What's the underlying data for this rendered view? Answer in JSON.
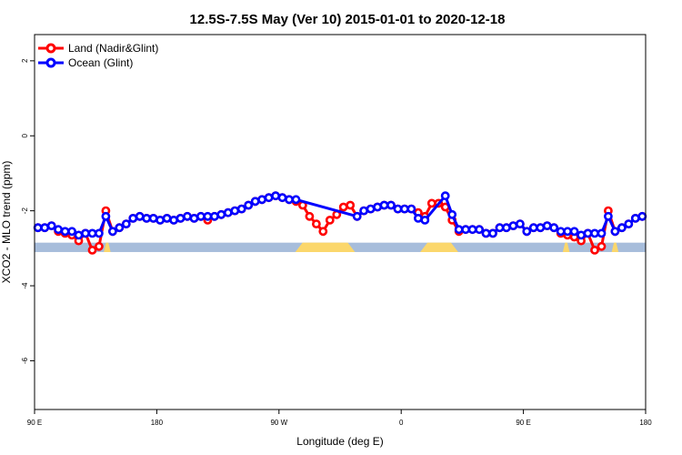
{
  "chart_data": {
    "type": "line",
    "title": "12.5S-7.5S May (Ver 10)   2015-01-01 to 2020-12-18",
    "xlabel": "Longitude (deg E)",
    "ylabel": "XCO2 - MLO trend (ppm)",
    "x_range": [
      90,
      540
    ],
    "ylim": [
      -7.3,
      2.7
    ],
    "x_ticks": [
      {
        "value": 90,
        "label": "90 E"
      },
      {
        "value": 180,
        "label": "180"
      },
      {
        "value": 270,
        "label": "90 W"
      },
      {
        "value": 360,
        "label": "0"
      },
      {
        "value": 450,
        "label": "90 E"
      },
      {
        "value": 540,
        "label": "180"
      }
    ],
    "y_ticks": [
      {
        "value": 2,
        "label": "2"
      },
      {
        "value": 0,
        "label": "0"
      },
      {
        "value": -2,
        "label": "-2"
      },
      {
        "value": -4,
        "label": "-4"
      },
      {
        "value": -6,
        "label": "-6"
      }
    ],
    "legend": {
      "position": "top-left"
    },
    "surface_band": {
      "y_range": [
        -2.85,
        -3.1
      ],
      "ocean_color": "#a7bddb",
      "land_color": "#fbd76c",
      "land_segments": [
        [
          282,
          326
        ],
        [
          374,
          402
        ],
        [
          479,
          484
        ],
        [
          515,
          520
        ],
        [
          141,
          146
        ]
      ]
    },
    "series": [
      {
        "name": "Land (Nadir&Glint)",
        "color": "#ff0000",
        "points": [
          [
            92.5,
            -2.45
          ],
          [
            97.5,
            -2.45
          ],
          [
            102.5,
            -2.4
          ],
          [
            107.5,
            -2.55
          ],
          [
            112.5,
            -2.6
          ],
          [
            117.5,
            -2.65
          ],
          [
            122.5,
            -2.8
          ],
          [
            127.5,
            -2.6
          ],
          [
            132.5,
            -3.05
          ],
          [
            137.5,
            -2.95
          ],
          [
            142.5,
            -2.0
          ],
          [
            147.5,
            -2.55
          ],
          [
            152.5,
            -2.45
          ],
          [
            157.5,
            -2.35
          ],
          [
            162.5,
            -2.2
          ],
          [
            167.5,
            -2.15
          ],
          [
            172.5,
            -2.2
          ],
          [
            177.5,
            -2.2
          ],
          [
            182.5,
            -2.25
          ],
          [
            187.5,
            -2.2
          ],
          [
            192.5,
            -2.25
          ],
          [
            197.5,
            -2.2
          ],
          [
            202.5,
            -2.15
          ],
          [
            207.5,
            -2.2
          ],
          [
            212.5,
            -2.15
          ],
          [
            217.5,
            -2.25
          ],
          [
            222.5,
            -2.15
          ],
          [
            227.5,
            -2.1
          ],
          [
            232.5,
            -2.05
          ],
          [
            237.5,
            -2.0
          ],
          [
            242.5,
            -1.95
          ],
          [
            247.5,
            -1.85
          ],
          [
            252.5,
            -1.75
          ],
          [
            257.5,
            -1.7
          ],
          [
            262.5,
            -1.65
          ],
          [
            267.5,
            -1.6
          ],
          [
            272.5,
            -1.65
          ],
          [
            277.5,
            -1.7
          ],
          [
            282.5,
            -1.75
          ],
          [
            287.5,
            -1.85
          ],
          [
            292.5,
            -2.15
          ],
          [
            297.5,
            -2.35
          ],
          [
            302.5,
            -2.55
          ],
          [
            307.5,
            -2.25
          ],
          [
            312.5,
            -2.1
          ],
          [
            317.5,
            -1.9
          ],
          [
            322.5,
            -1.85
          ],
          [
            327.5,
            -2.15
          ],
          [
            332.5,
            -2.0
          ],
          [
            337.5,
            -1.95
          ],
          [
            342.5,
            -1.9
          ],
          [
            347.5,
            -1.85
          ],
          [
            352.5,
            -1.85
          ],
          [
            357.5,
            -1.95
          ],
          [
            362.5,
            -1.95
          ],
          [
            367.5,
            -1.95
          ],
          [
            372.5,
            -2.05
          ],
          [
            377.5,
            -2.15
          ],
          [
            382.5,
            -1.8
          ],
          [
            387.5,
            -1.8
          ],
          [
            392.5,
            -1.9
          ],
          [
            397.5,
            -2.25
          ],
          [
            402.5,
            -2.55
          ],
          [
            407.5,
            -2.5
          ],
          [
            412.5,
            -2.5
          ],
          [
            417.5,
            -2.5
          ],
          [
            422.5,
            -2.6
          ],
          [
            427.5,
            -2.6
          ],
          [
            432.5,
            -2.45
          ],
          [
            437.5,
            -2.45
          ],
          [
            442.5,
            -2.4
          ],
          [
            447.5,
            -2.35
          ],
          [
            452.5,
            -2.55
          ],
          [
            457.5,
            -2.45
          ],
          [
            462.5,
            -2.45
          ],
          [
            467.5,
            -2.4
          ],
          [
            472.5,
            -2.45
          ],
          [
            477.5,
            -2.6
          ],
          [
            482.5,
            -2.65
          ],
          [
            487.5,
            -2.7
          ],
          [
            492.5,
            -2.8
          ],
          [
            497.5,
            -2.6
          ],
          [
            502.5,
            -3.05
          ],
          [
            507.5,
            -2.95
          ],
          [
            512.5,
            -2.0
          ],
          [
            517.5,
            -2.55
          ],
          [
            522.5,
            -2.45
          ],
          [
            527.5,
            -2.35
          ],
          [
            532.5,
            -2.2
          ],
          [
            537.5,
            -2.15
          ]
        ]
      },
      {
        "name": "Ocean (Glint)",
        "color": "#0000ff",
        "points": [
          [
            92.5,
            -2.45
          ],
          [
            97.5,
            -2.45
          ],
          [
            102.5,
            -2.4
          ],
          [
            107.5,
            -2.5
          ],
          [
            112.5,
            -2.55
          ],
          [
            117.5,
            -2.55
          ],
          [
            122.5,
            -2.65
          ],
          [
            127.5,
            -2.6
          ],
          [
            132.5,
            -2.6
          ],
          [
            137.5,
            -2.6
          ],
          [
            142.5,
            -2.15
          ],
          [
            147.5,
            -2.55
          ],
          [
            152.5,
            -2.45
          ],
          [
            157.5,
            -2.35
          ],
          [
            162.5,
            -2.2
          ],
          [
            167.5,
            -2.15
          ],
          [
            172.5,
            -2.2
          ],
          [
            177.5,
            -2.2
          ],
          [
            182.5,
            -2.25
          ],
          [
            187.5,
            -2.2
          ],
          [
            192.5,
            -2.25
          ],
          [
            197.5,
            -2.2
          ],
          [
            202.5,
            -2.15
          ],
          [
            207.5,
            -2.2
          ],
          [
            212.5,
            -2.15
          ],
          [
            217.5,
            -2.15
          ],
          [
            222.5,
            -2.15
          ],
          [
            227.5,
            -2.1
          ],
          [
            232.5,
            -2.05
          ],
          [
            237.5,
            -2.0
          ],
          [
            242.5,
            -1.95
          ],
          [
            247.5,
            -1.85
          ],
          [
            252.5,
            -1.75
          ],
          [
            257.5,
            -1.7
          ],
          [
            262.5,
            -1.65
          ],
          [
            267.5,
            -1.6
          ],
          [
            272.5,
            -1.65
          ],
          [
            277.5,
            -1.7
          ],
          [
            282.5,
            -1.7
          ],
          [
            327.5,
            -2.15
          ],
          [
            332.5,
            -2.0
          ],
          [
            337.5,
            -1.95
          ],
          [
            342.5,
            -1.9
          ],
          [
            347.5,
            -1.85
          ],
          [
            352.5,
            -1.85
          ],
          [
            357.5,
            -1.95
          ],
          [
            362.5,
            -1.95
          ],
          [
            367.5,
            -1.95
          ],
          [
            372.5,
            -2.2
          ],
          [
            377.5,
            -2.25
          ],
          [
            392.5,
            -1.6
          ],
          [
            397.5,
            -2.1
          ],
          [
            402.5,
            -2.5
          ],
          [
            407.5,
            -2.5
          ],
          [
            412.5,
            -2.5
          ],
          [
            417.5,
            -2.5
          ],
          [
            422.5,
            -2.6
          ],
          [
            427.5,
            -2.6
          ],
          [
            432.5,
            -2.45
          ],
          [
            437.5,
            -2.45
          ],
          [
            442.5,
            -2.4
          ],
          [
            447.5,
            -2.35
          ],
          [
            452.5,
            -2.55
          ],
          [
            457.5,
            -2.45
          ],
          [
            462.5,
            -2.45
          ],
          [
            467.5,
            -2.4
          ],
          [
            472.5,
            -2.45
          ],
          [
            477.5,
            -2.55
          ],
          [
            482.5,
            -2.55
          ],
          [
            487.5,
            -2.55
          ],
          [
            492.5,
            -2.65
          ],
          [
            497.5,
            -2.6
          ],
          [
            502.5,
            -2.6
          ],
          [
            507.5,
            -2.6
          ],
          [
            512.5,
            -2.15
          ],
          [
            517.5,
            -2.55
          ],
          [
            522.5,
            -2.45
          ],
          [
            527.5,
            -2.35
          ],
          [
            532.5,
            -2.2
          ],
          [
            537.5,
            -2.15
          ]
        ]
      }
    ]
  }
}
